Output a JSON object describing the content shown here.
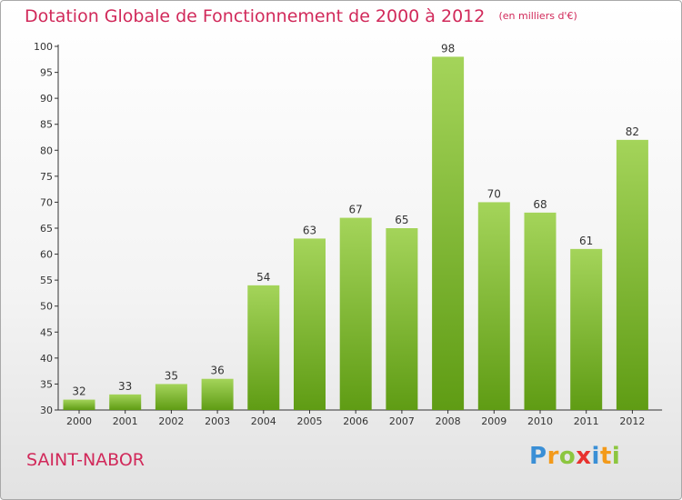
{
  "chart_data": {
    "type": "bar",
    "title": "Dotation Globale de Fonctionnement de 2000 à 2012",
    "subtitle": "(en milliers d'€)",
    "categories": [
      "2000",
      "2001",
      "2002",
      "2003",
      "2004",
      "2005",
      "2006",
      "2007",
      "2008",
      "2009",
      "2010",
      "2011",
      "2012"
    ],
    "values": [
      32,
      33,
      35,
      36,
      54,
      63,
      67,
      65,
      98,
      70,
      68,
      61,
      82
    ],
    "ylim": [
      30,
      100
    ],
    "yticks": [
      30,
      35,
      40,
      45,
      50,
      55,
      60,
      65,
      70,
      75,
      80,
      85,
      90,
      95,
      100
    ],
    "grid": false,
    "bar_color_top": "#a4d45a",
    "bar_color_bottom": "#5f9c14"
  },
  "town": "SAINT-NABOR",
  "brand": {
    "letters": [
      "P",
      "r",
      "o",
      "x",
      "i",
      "t",
      "i"
    ],
    "colors": [
      "#3a8fd6",
      "#f39a1a",
      "#8cc63f",
      "#e8322e",
      "#3a8fd6",
      "#f39a1a",
      "#8cc63f"
    ]
  }
}
